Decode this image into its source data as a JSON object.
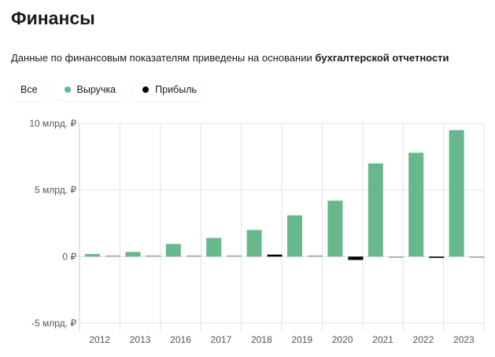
{
  "header": {
    "title": "Финансы",
    "subtitle": "Данные по финансовым показателям приведены на основании ",
    "subtitle_bold": "бухгалтерской отчетности"
  },
  "filters": [
    {
      "label": "Все"
    },
    {
      "label": "Выручка",
      "color": "#67b88c"
    },
    {
      "label": "Прибыль",
      "color": "#000000"
    }
  ],
  "chart_data": {
    "type": "bar",
    "title": "",
    "xlabel": "",
    "ylabel": "",
    "categories": [
      "2012",
      "2013",
      "2016",
      "2017",
      "2018",
      "2019",
      "2020",
      "2021",
      "2022",
      "2023"
    ],
    "series": [
      {
        "name": "Выручка",
        "color": "#67b88c",
        "values": [
          0.2,
          0.35,
          0.95,
          1.4,
          2.0,
          3.1,
          4.2,
          7.0,
          7.8,
          9.5
        ]
      },
      {
        "name": "Прибыль",
        "color": "#000000",
        "values": [
          0.05,
          0.05,
          0.05,
          0.02,
          0.15,
          0.02,
          -0.25,
          -0.05,
          -0.1,
          -0.02
        ]
      }
    ],
    "unit": "млрд. ₽",
    "ylim": [
      -5,
      10
    ],
    "yticks": [
      {
        "v": 10,
        "label": "10 млрд. ₽"
      },
      {
        "v": 5,
        "label": "5 млрд. ₽"
      },
      {
        "v": 0,
        "label": "0 ₽"
      },
      {
        "v": -5,
        "label": "-5 млрд. ₽"
      }
    ],
    "grid": true,
    "legend": "top-left"
  }
}
